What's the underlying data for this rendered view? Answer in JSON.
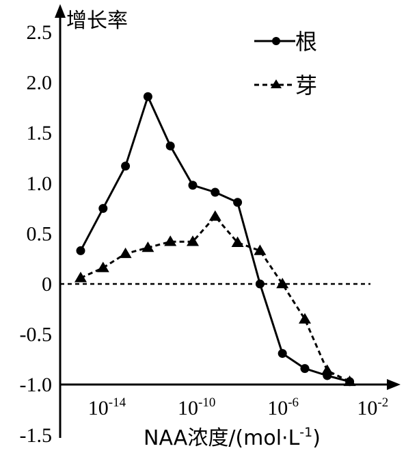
{
  "chart_data": {
    "type": "line",
    "ylabel": "增长率",
    "xlabel": "NAA浓度/(mol·L",
    "xlabel_sup": "-1",
    "xlabel_close": ")",
    "x_scale": "log",
    "x_ticks": [
      {
        "base": "10",
        "exp": "-14",
        "value": 1e-14
      },
      {
        "base": "10",
        "exp": "-10",
        "value": 1e-10
      },
      {
        "base": "10",
        "exp": "-6",
        "value": 1e-06
      },
      {
        "base": "10",
        "exp": "-2",
        "value": 0.01
      }
    ],
    "y_ticks": [
      "2.5",
      "2.0",
      "1.5",
      "1.0",
      "0.5",
      "0",
      "-0.5",
      "-1.0",
      "-1.5"
    ],
    "ylim": [
      -1.5,
      2.5
    ],
    "zero_line": "dashed",
    "legend_position": "top-right",
    "series": [
      {
        "name": "根",
        "style": "solid",
        "marker": "circle",
        "x": [
          1e-15,
          3.2e-15,
          1e-14,
          3.2e-14,
          1e-13,
          3.2e-13,
          1e-12,
          3.2e-12,
          1e-11,
          3.2e-11,
          1e-10,
          3.2e-10,
          1e-09,
          3.2e-09,
          1e-08,
          3.2e-08,
          1e-07,
          3.2e-07,
          1e-06,
          3.2e-06,
          1e-05,
          3.2e-05,
          0.0001,
          0.00032,
          0.001,
          0.0032
        ],
        "y": [
          0.33,
          null,
          0.75,
          null,
          1.17,
          null,
          1.86,
          null,
          1.37,
          null,
          0.98,
          null,
          0.91,
          null,
          0.81,
          null,
          0.0,
          null,
          -0.69,
          null,
          -0.84,
          null,
          -0.91,
          null,
          -0.97,
          null
        ],
        "plotted_x": [
          1e-15,
          1e-14,
          1e-13,
          1e-12,
          1e-11,
          1e-10,
          1e-09,
          1e-08,
          1e-07,
          1e-06,
          1e-05,
          0.0001,
          0.001
        ],
        "plotted_y": [
          0.33,
          0.75,
          1.17,
          1.86,
          1.37,
          0.98,
          0.91,
          0.81,
          0.0,
          -0.69,
          -0.84,
          -0.91,
          -0.97
        ]
      },
      {
        "name": "芽",
        "style": "dashed",
        "marker": "triangle",
        "x": [
          1e-15,
          1e-14,
          1e-13,
          1e-12,
          1e-11,
          1e-10,
          1e-09,
          1e-08,
          1e-07,
          1e-06,
          1e-05,
          0.0001,
          0.001
        ],
        "y": [
          0.06,
          0.16,
          0.3,
          0.36,
          0.42,
          0.42,
          0.67,
          0.41,
          0.33,
          0.0,
          -0.35,
          -0.86,
          -0.97
        ]
      }
    ]
  }
}
